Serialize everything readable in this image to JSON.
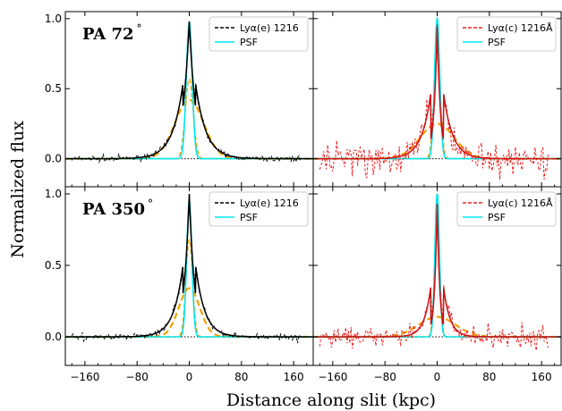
{
  "figure": {
    "xlabel": "Distance along slit (kpc)",
    "ylabel": "Normalized flux"
  },
  "chart_data": [
    {
      "type": "line",
      "panel": "top-left",
      "pa_label": "PA 72",
      "pa_degree": "°",
      "xlim": [
        -190,
        190
      ],
      "ylim": [
        -0.2,
        1.05
      ],
      "xticks": [
        -160,
        -80,
        0,
        80,
        160
      ],
      "yticks": [
        0.0,
        0.5,
        1.0
      ],
      "xticklabels": [],
      "yticklabels": [
        "0.0",
        "0.5",
        "1.0"
      ],
      "legend_position": "top-right",
      "legend": [
        {
          "label": "Lyα(e) 1216",
          "color": "#000000",
          "style": "dashed"
        },
        {
          "label": "PSF",
          "color": "#00e5ee",
          "style": "solid"
        }
      ],
      "data_color": "#000000",
      "fit_color": "#000000",
      "components": {
        "narrow_amp": 0.57,
        "narrow_sigma": 6,
        "broad_amp": 0.42,
        "broad_sigma": 22
      },
      "model": {
        "amp": 0.98,
        "inner_scale": 10,
        "outer_scale": 16
      },
      "psf": {
        "amp": 0.97,
        "sigma": 4.5
      },
      "noise": 0.012
    },
    {
      "type": "line",
      "panel": "top-right",
      "xlim": [
        -190,
        190
      ],
      "ylim": [
        -0.2,
        1.05
      ],
      "xticks": [
        -160,
        -80,
        0,
        80,
        160
      ],
      "yticks": [
        0.0,
        0.5,
        1.0
      ],
      "xticklabels": [],
      "yticklabels": [],
      "legend_position": "top-right",
      "legend": [
        {
          "label": "Lyα(c) 1216Å",
          "color": "#ee2222",
          "style": "dashed"
        },
        {
          "label": "PSF",
          "color": "#00e5ee",
          "style": "solid"
        }
      ],
      "data_color": "#ee2222",
      "fit_color": "#cc1111",
      "components": {
        "narrow_amp": 0.72,
        "narrow_sigma": 5,
        "broad_amp": 0.25,
        "broad_sigma": 26
      },
      "model": {
        "amp": 0.94,
        "inner_scale": 5,
        "outer_scale": 14
      },
      "psf": {
        "amp": 1.0,
        "sigma": 4
      },
      "noise": 0.07
    },
    {
      "type": "line",
      "panel": "bottom-left",
      "pa_label": "PA 350",
      "pa_degree": "°",
      "xlim": [
        -190,
        190
      ],
      "ylim": [
        -0.2,
        1.05
      ],
      "xticks": [
        -160,
        -80,
        0,
        80,
        160
      ],
      "yticks": [
        0.0,
        0.5,
        1.0
      ],
      "xticklabels": [
        "−160",
        "−80",
        "0",
        "80",
        "160"
      ],
      "yticklabels": [
        "0.0",
        "0.5",
        "1.0"
      ],
      "legend_position": "top-right",
      "legend": [
        {
          "label": "Lyα(e) 1216",
          "color": "#000000",
          "style": "dashed"
        },
        {
          "label": "PSF",
          "color": "#00e5ee",
          "style": "solid"
        }
      ],
      "data_color": "#000000",
      "fit_color": "#000000",
      "components": {
        "narrow_amp": 0.68,
        "narrow_sigma": 5,
        "broad_amp": 0.34,
        "broad_sigma": 16
      },
      "model": {
        "amp": 1.0,
        "inner_scale": 8,
        "outer_scale": 14
      },
      "psf": {
        "amp": 0.95,
        "sigma": 4
      },
      "noise": 0.015
    },
    {
      "type": "line",
      "panel": "bottom-right",
      "xlim": [
        -190,
        190
      ],
      "ylim": [
        -0.2,
        1.05
      ],
      "xticks": [
        -160,
        -80,
        0,
        80,
        160
      ],
      "yticks": [
        0.0,
        0.5,
        1.0
      ],
      "xticklabels": [
        "−160",
        "−80",
        "0",
        "80",
        "160"
      ],
      "yticklabels": [],
      "legend_position": "top-right",
      "legend": [
        {
          "label": "Lyα(c) 1216Å",
          "color": "#ee2222",
          "style": "dashed"
        },
        {
          "label": "PSF",
          "color": "#00e5ee",
          "style": "solid"
        }
      ],
      "data_color": "#ee2222",
      "fit_color": "#cc1111",
      "components": {
        "narrow_amp": 0.8,
        "narrow_sigma": 4,
        "broad_amp": 0.14,
        "broad_sigma": 28
      },
      "model": {
        "amp": 0.93,
        "inner_scale": 4,
        "outer_scale": 10
      },
      "psf": {
        "amp": 1.0,
        "sigma": 3.5
      },
      "noise": 0.05
    }
  ],
  "colors": {
    "psf": "#00e5ee",
    "components": "#f0a000",
    "zero_line": "#000000"
  }
}
